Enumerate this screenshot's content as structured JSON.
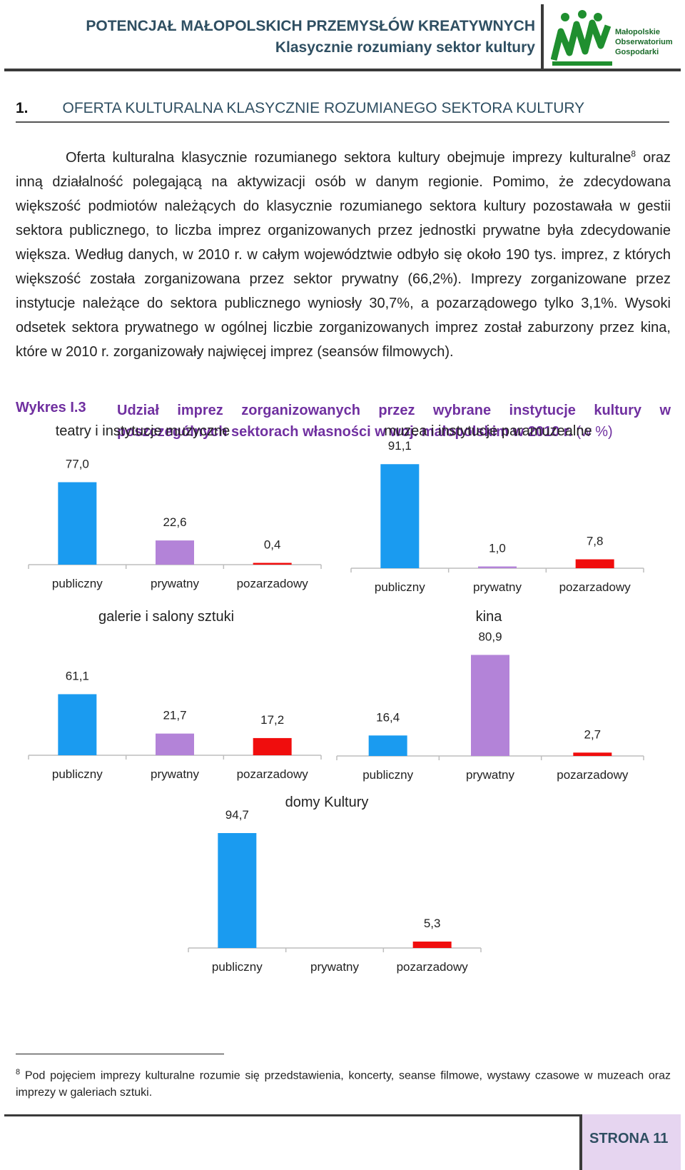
{
  "header": {
    "title_line1": "POTENCJAŁ MAŁOPOLSKICH PRZEMYSŁÓW KREATYWNYCH",
    "title_line2": "Klasycznie rozumiany sektor kultury",
    "logo_text": [
      "Małopolskie",
      "Obserwatorium",
      "Gospodarki"
    ],
    "logo_color": "#1f8f2f"
  },
  "section": {
    "number": "1.",
    "title": "OFERTA KULTURALNA KLASYCZNIE ROZUMIANEGO SEKTORA KULTURY"
  },
  "paragraph": {
    "part1": "Oferta kulturalna klasycznie rozumianego sektora kultury obejmuje imprezy kulturalne",
    "footnote_ref": "8",
    "part2": " oraz inną działalność polegającą na aktywizacji osób w danym regionie. Pomimo, że zdecydowana większość podmiotów należących do klasycznie rozumianego sektora kultury pozostawała w gestii sektora publicznego, to liczba imprez organizowanych przez jednostki prywatne była zdecydowanie większa. Według danych, w 2010 r. w całym województwie odbyło się około 190 tys. imprez, z których większość została zorganizowana przez sektor prywatny (66,2%). Imprezy zorganizowane przez instytucje należące do sektora publicznego wyniosły 30,7%, a pozarządowego tylko 3,1%. Wysoki odsetek sektora prywatnego w ogólnej liczbie zorganizowanych imprez został zaburzony przez kina, które w 2010 r. zorganizowały najwięcej imprez (seansów filmowych)."
  },
  "caption": {
    "label": "Wykres I.3",
    "text": "Udział imprez zorganizowanych przez wybrane instytucje kultury w poszczególnych sektorach własności w woj. małopolskim w 2010 r.",
    "unit": " (w %)"
  },
  "colors": {
    "publiczny": "#1a9bf0",
    "prywatny": "#b383d8",
    "pozarzadowy": "#f00d0d",
    "axis": "#bdbdbd",
    "heading": "#2f4f62",
    "caption": "#7030a0"
  },
  "chart_data": [
    {
      "type": "bar",
      "title": "teatry i instytucje muzyczne",
      "categories": [
        "publiczny",
        "prywatny",
        "pozarzadowy"
      ],
      "values": [
        77.0,
        22.6,
        0.4
      ],
      "labels": [
        "77,0",
        "22,6",
        "0,4"
      ],
      "ylim": [
        0,
        100
      ]
    },
    {
      "type": "bar",
      "title": "muzea i instytucje paramuzealne",
      "categories": [
        "publiczny",
        "prywatny",
        "pozarzadowy"
      ],
      "values": [
        91.1,
        1.0,
        7.8
      ],
      "labels": [
        "91,1",
        "1,0",
        "7,8"
      ],
      "ylim": [
        0,
        100
      ]
    },
    {
      "type": "bar",
      "title": "galerie i salony sztuki",
      "categories": [
        "publiczny",
        "prywatny",
        "pozarzadowy"
      ],
      "values": [
        61.1,
        21.7,
        17.2
      ],
      "labels": [
        "61,1",
        "21,7",
        "17,2"
      ],
      "ylim": [
        0,
        100
      ]
    },
    {
      "type": "bar",
      "title": "kina",
      "categories": [
        "publiczny",
        "prywatny",
        "pozarzadowy"
      ],
      "values": [
        16.4,
        80.9,
        2.7
      ],
      "labels": [
        "16,4",
        "80,9",
        "2,7"
      ],
      "ylim": [
        0,
        100
      ]
    },
    {
      "type": "bar",
      "title": "domy Kultury",
      "categories": [
        "publiczny",
        "prywatny",
        "pozarzadowy"
      ],
      "values": [
        94.7,
        null,
        5.3
      ],
      "labels": [
        "94,7",
        "",
        "5,3"
      ],
      "ylim": [
        0,
        100
      ]
    }
  ],
  "footnote": {
    "number": "8",
    "text": " Pod pojęciem imprezy kulturalne rozumie się przedstawienia, koncerty, seanse filmowe, wystawy czasowe w muzeach oraz imprezy w galeriach sztuki."
  },
  "footer": {
    "page_label": "STRONA 11"
  }
}
